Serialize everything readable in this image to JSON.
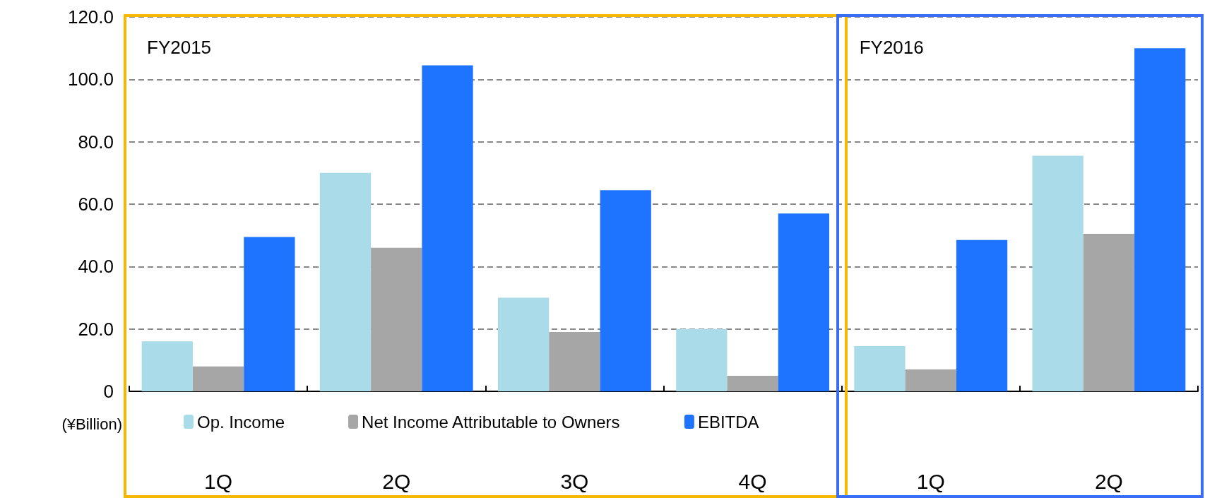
{
  "chart_data": {
    "type": "bar",
    "categories": [
      "1Q",
      "2Q",
      "3Q",
      "4Q",
      "1Q",
      "2Q"
    ],
    "series": [
      {
        "name": "Op. Income",
        "color": "#a9dce8",
        "values": [
          16,
          70,
          30,
          20,
          14.5,
          75.5
        ]
      },
      {
        "name": "Net Income Attributable to Owners",
        "color": "#a6a6a6",
        "values": [
          8,
          46,
          19,
          5,
          7,
          50.5
        ]
      },
      {
        "name": "EBITDA",
        "color": "#1f74ff",
        "values": [
          49.5,
          104.5,
          64.5,
          57,
          48.5,
          110
        ]
      }
    ],
    "ylabel": "(¥Billion)",
    "ylim": [
      0,
      120
    ],
    "yticks": [
      0,
      {
        "value": 20,
        "label": "20.0"
      },
      {
        "value": 40,
        "label": "40.0"
      },
      {
        "value": 60,
        "label": "60.0"
      },
      {
        "value": 80,
        "label": "80.0"
      },
      {
        "value": 100,
        "label": "100.0"
      },
      {
        "value": 120,
        "label": "120.0"
      }
    ],
    "annotations": [
      "FY2015",
      "FY2016"
    ],
    "grid": "y",
    "legend": "bottom"
  }
}
